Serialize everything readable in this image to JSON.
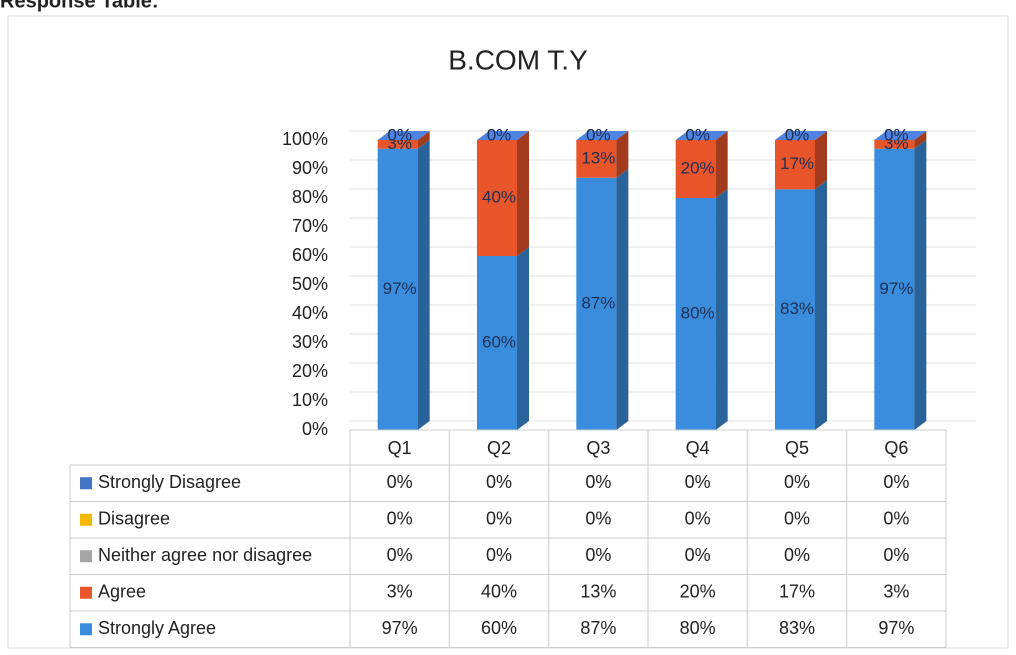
{
  "page_heading": "Response Table:",
  "chart_data": {
    "type": "bar",
    "stacked": true,
    "title": "B.COM T.Y",
    "categories": [
      "Q1",
      "Q2",
      "Q3",
      "Q4",
      "Q5",
      "Q6"
    ],
    "series": [
      {
        "name": "Strongly Agree",
        "color": "#3a8ddc",
        "values": [
          97,
          60,
          87,
          80,
          83,
          97
        ],
        "value_labels": [
          "97%",
          "60%",
          "87%",
          "80%",
          "83%",
          "97%"
        ]
      },
      {
        "name": "Agree",
        "color": "#e8552a",
        "values": [
          3,
          40,
          13,
          20,
          17,
          3
        ],
        "value_labels": [
          "3%",
          "40%",
          "13%",
          "20%",
          "17%",
          "3%"
        ]
      },
      {
        "name": "Neither agree nor disagree",
        "color": "#a5a5a5",
        "values": [
          0,
          0,
          0,
          0,
          0,
          0
        ],
        "value_labels": [
          "0%",
          "0%",
          "0%",
          "0%",
          "0%",
          "0%"
        ]
      },
      {
        "name": "Disagree",
        "color": "#f5b800",
        "values": [
          0,
          0,
          0,
          0,
          0,
          0
        ],
        "value_labels": [
          "0%",
          "0%",
          "0%",
          "0%",
          "0%",
          "0%"
        ]
      },
      {
        "name": "Strongly Disagree",
        "color": "#4472c4",
        "values": [
          0,
          0,
          0,
          0,
          0,
          0
        ],
        "value_labels": [
          "0%",
          "0%",
          "0%",
          "0%",
          "0%",
          "0%"
        ]
      }
    ],
    "ylim": [
      0,
      100
    ],
    "yticks": [
      {
        "value": 0,
        "label": "0%"
      },
      {
        "value": 10,
        "label": "10%"
      },
      {
        "value": 20,
        "label": "20%"
      },
      {
        "value": 30,
        "label": "30%"
      },
      {
        "value": 40,
        "label": "40%"
      },
      {
        "value": 50,
        "label": "50%"
      },
      {
        "value": 60,
        "label": "60%"
      },
      {
        "value": 70,
        "label": "70%"
      },
      {
        "value": 80,
        "label": "80%"
      },
      {
        "value": 90,
        "label": "90%"
      },
      {
        "value": 100,
        "label": "100%"
      }
    ],
    "grid": true,
    "data_table": true
  }
}
